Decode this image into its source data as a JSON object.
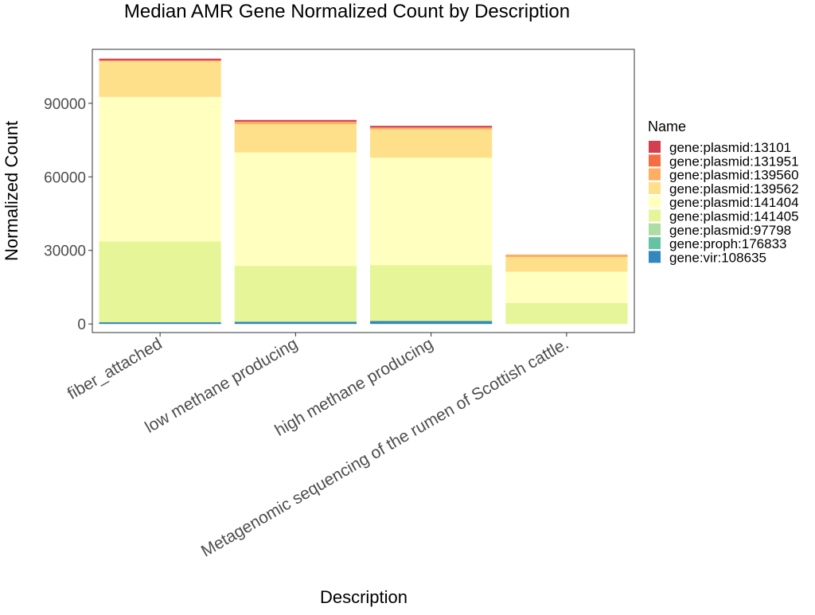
{
  "chart_data": {
    "type": "bar",
    "stacked": true,
    "title": "Median AMR Gene Normalized Count by Description",
    "xlabel": "Description",
    "ylabel": "Normalized Count",
    "ylim": [
      -3500,
      112000
    ],
    "yticks": [
      0,
      30000,
      60000,
      90000
    ],
    "ytick_labels": [
      "0",
      "30000",
      "60000",
      "90000"
    ],
    "grid": false,
    "legend": {
      "title": "Name",
      "placement": "right"
    },
    "categories": [
      "fiber_attached",
      "low methane producing",
      "high methane producing",
      "Metagenomic sequencing of the rumen of Scottish cattle."
    ],
    "series": [
      {
        "name": "gene:vir:108635",
        "color": "#3288BD",
        "values": [
          700,
          900,
          1200,
          0
        ]
      },
      {
        "name": "gene:proph:176833",
        "color": "#66C2A5",
        "values": [
          0,
          0,
          0,
          0
        ]
      },
      {
        "name": "gene:plasmid:97798",
        "color": "#ABDDA4",
        "values": [
          0,
          0,
          0,
          0
        ]
      },
      {
        "name": "gene:plasmid:141405",
        "color": "#E6F598",
        "values": [
          33000,
          22800,
          22800,
          8500
        ]
      },
      {
        "name": "gene:plasmid:141404",
        "color": "#FFFFBF",
        "values": [
          58900,
          46300,
          43800,
          12800
        ]
      },
      {
        "name": "gene:plasmid:139562",
        "color": "#FEE08B",
        "values": [
          14500,
          11500,
          11500,
          6000
        ]
      },
      {
        "name": "gene:plasmid:139560",
        "color": "#FDAE61",
        "values": [
          400,
          1000,
          800,
          1000
        ]
      },
      {
        "name": "gene:plasmid:131951",
        "color": "#F46D43",
        "values": [
          0,
          0,
          0,
          0
        ]
      },
      {
        "name": "gene:plasmid:13101",
        "color": "#D53E4F",
        "values": [
          700,
          700,
          700,
          0
        ]
      }
    ]
  }
}
